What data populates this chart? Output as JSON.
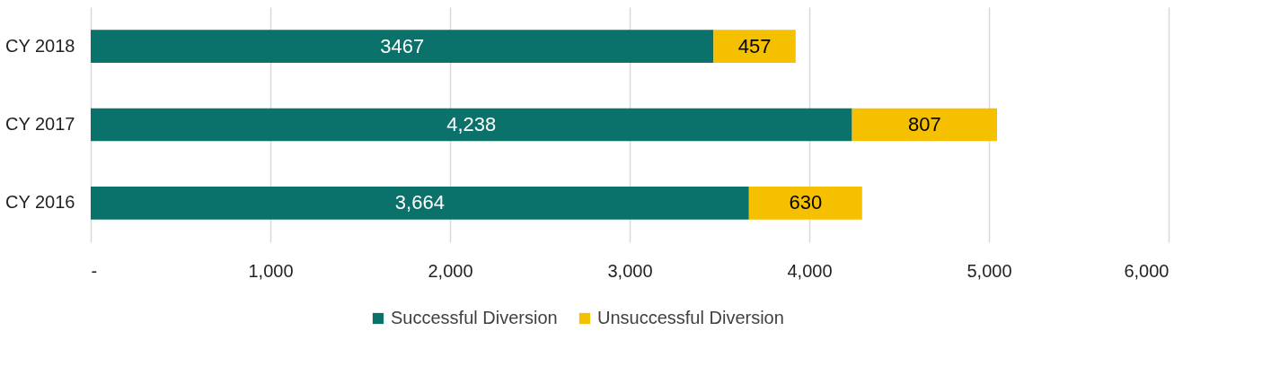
{
  "chart_data": {
    "type": "bar",
    "orientation": "horizontal",
    "stacked": true,
    "categories": [
      "CY 2018",
      "CY 2017",
      "CY 2016"
    ],
    "series": [
      {
        "name": "Successful Diversion",
        "color": "#0b716b",
        "values": [
          3467,
          4238,
          3664
        ],
        "value_labels": [
          "3467",
          "4,238",
          "3,664"
        ]
      },
      {
        "name": "Unsuccessful Diversion",
        "color": "#f5c000",
        "values": [
          457,
          807,
          630
        ],
        "value_labels": [
          "457",
          "807",
          "630"
        ]
      }
    ],
    "xlim": [
      0,
      6000
    ],
    "xticks": [
      {
        "value": 0,
        "label": "-"
      },
      {
        "value": 1000,
        "label": "1,000"
      },
      {
        "value": 2000,
        "label": "2,000"
      },
      {
        "value": 3000,
        "label": "3,000"
      },
      {
        "value": 4000,
        "label": "4,000"
      },
      {
        "value": 5000,
        "label": "5,000"
      },
      {
        "value": 6000,
        "label": "6,000"
      }
    ],
    "grid": "x",
    "legend": "bottom"
  }
}
